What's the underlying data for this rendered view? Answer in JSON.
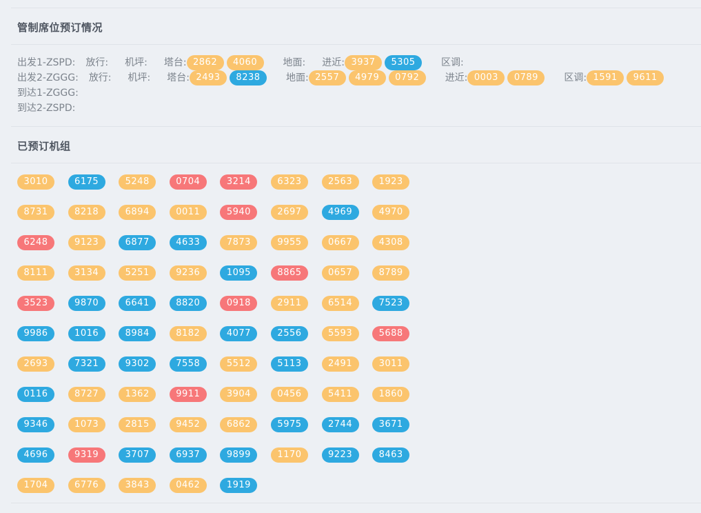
{
  "section1": {
    "title": "管制席位预订情况"
  },
  "section2": {
    "title": "已预订机组"
  },
  "rows": [
    {
      "label": "出发1-ZSPD:",
      "groups": [
        {
          "label": "放行:",
          "chips": []
        },
        {
          "label": "机坪:",
          "chips": []
        },
        {
          "label": "塔台:",
          "chips": [
            {
              "code": "2862",
              "color": "orange"
            },
            {
              "code": "4060",
              "color": "orange"
            }
          ]
        },
        {
          "label": "地面:",
          "chips": []
        },
        {
          "label": "进近:",
          "chips": [
            {
              "code": "3937",
              "color": "orange"
            },
            {
              "code": "5305",
              "color": "blue"
            }
          ]
        },
        {
          "label": "区调:",
          "chips": []
        }
      ]
    },
    {
      "label": "出发2-ZGGG:",
      "groups": [
        {
          "label": "放行:",
          "chips": []
        },
        {
          "label": "机坪:",
          "chips": []
        },
        {
          "label": "塔台:",
          "chips": [
            {
              "code": "2493",
              "color": "orange"
            },
            {
              "code": "8238",
              "color": "blue"
            }
          ]
        },
        {
          "label": "地面:",
          "chips": [
            {
              "code": "2557",
              "color": "orange"
            },
            {
              "code": "4979",
              "color": "orange"
            },
            {
              "code": "0792",
              "color": "orange"
            }
          ]
        },
        {
          "label": "进近:",
          "chips": [
            {
              "code": "0003",
              "color": "orange"
            },
            {
              "code": "0789",
              "color": "orange"
            }
          ]
        },
        {
          "label": "区调:",
          "chips": [
            {
              "code": "1591",
              "color": "orange"
            },
            {
              "code": "9611",
              "color": "orange"
            }
          ]
        }
      ]
    },
    {
      "label": "到达1-ZGGG:",
      "groups": []
    },
    {
      "label": "到达2-ZSPD:",
      "groups": []
    }
  ],
  "booked": [
    {
      "code": "3010",
      "color": "orange"
    },
    {
      "code": "6175",
      "color": "blue"
    },
    {
      "code": "5248",
      "color": "orange"
    },
    {
      "code": "0704",
      "color": "red"
    },
    {
      "code": "3214",
      "color": "red"
    },
    {
      "code": "6323",
      "color": "orange"
    },
    {
      "code": "2563",
      "color": "orange"
    },
    {
      "code": "1923",
      "color": "orange"
    },
    {
      "code": "8731",
      "color": "orange"
    },
    {
      "code": "8218",
      "color": "orange"
    },
    {
      "code": "6894",
      "color": "orange"
    },
    {
      "code": "0011",
      "color": "orange"
    },
    {
      "code": "5940",
      "color": "red"
    },
    {
      "code": "2697",
      "color": "orange"
    },
    {
      "code": "4969",
      "color": "blue"
    },
    {
      "code": "4970",
      "color": "orange"
    },
    {
      "code": "6248",
      "color": "red"
    },
    {
      "code": "9123",
      "color": "orange"
    },
    {
      "code": "6877",
      "color": "blue"
    },
    {
      "code": "4633",
      "color": "blue"
    },
    {
      "code": "7873",
      "color": "orange"
    },
    {
      "code": "9955",
      "color": "orange"
    },
    {
      "code": "0667",
      "color": "orange"
    },
    {
      "code": "4308",
      "color": "orange"
    },
    {
      "code": "8111",
      "color": "orange"
    },
    {
      "code": "3134",
      "color": "orange"
    },
    {
      "code": "5251",
      "color": "orange"
    },
    {
      "code": "9236",
      "color": "orange"
    },
    {
      "code": "1095",
      "color": "blue"
    },
    {
      "code": "8865",
      "color": "red"
    },
    {
      "code": "0657",
      "color": "orange"
    },
    {
      "code": "8789",
      "color": "orange"
    },
    {
      "code": "3523",
      "color": "red"
    },
    {
      "code": "9870",
      "color": "blue"
    },
    {
      "code": "6641",
      "color": "blue"
    },
    {
      "code": "8820",
      "color": "blue"
    },
    {
      "code": "0918",
      "color": "red"
    },
    {
      "code": "2911",
      "color": "orange"
    },
    {
      "code": "6514",
      "color": "orange"
    },
    {
      "code": "7523",
      "color": "blue"
    },
    {
      "code": "9986",
      "color": "blue"
    },
    {
      "code": "1016",
      "color": "blue"
    },
    {
      "code": "8984",
      "color": "blue"
    },
    {
      "code": "8182",
      "color": "orange"
    },
    {
      "code": "4077",
      "color": "blue"
    },
    {
      "code": "2556",
      "color": "blue"
    },
    {
      "code": "5593",
      "color": "orange"
    },
    {
      "code": "5688",
      "color": "red"
    },
    {
      "code": "2693",
      "color": "orange"
    },
    {
      "code": "7321",
      "color": "blue"
    },
    {
      "code": "9302",
      "color": "blue"
    },
    {
      "code": "7558",
      "color": "blue"
    },
    {
      "code": "5512",
      "color": "orange"
    },
    {
      "code": "5113",
      "color": "blue"
    },
    {
      "code": "2491",
      "color": "orange"
    },
    {
      "code": "3011",
      "color": "orange"
    },
    {
      "code": "0116",
      "color": "blue"
    },
    {
      "code": "8727",
      "color": "orange"
    },
    {
      "code": "1362",
      "color": "orange"
    },
    {
      "code": "9911",
      "color": "red"
    },
    {
      "code": "3904",
      "color": "orange"
    },
    {
      "code": "0456",
      "color": "orange"
    },
    {
      "code": "5411",
      "color": "orange"
    },
    {
      "code": "1860",
      "color": "orange"
    },
    {
      "code": "9346",
      "color": "blue"
    },
    {
      "code": "1073",
      "color": "orange"
    },
    {
      "code": "2815",
      "color": "orange"
    },
    {
      "code": "9452",
      "color": "orange"
    },
    {
      "code": "6862",
      "color": "orange"
    },
    {
      "code": "5975",
      "color": "blue"
    },
    {
      "code": "2744",
      "color": "blue"
    },
    {
      "code": "3671",
      "color": "blue"
    },
    {
      "code": "4696",
      "color": "blue"
    },
    {
      "code": "9319",
      "color": "red"
    },
    {
      "code": "3707",
      "color": "blue"
    },
    {
      "code": "6937",
      "color": "blue"
    },
    {
      "code": "9899",
      "color": "blue"
    },
    {
      "code": "1170",
      "color": "orange"
    },
    {
      "code": "9223",
      "color": "blue"
    },
    {
      "code": "8463",
      "color": "blue"
    },
    {
      "code": "1704",
      "color": "orange"
    },
    {
      "code": "6776",
      "color": "orange"
    },
    {
      "code": "3843",
      "color": "orange"
    },
    {
      "code": "0462",
      "color": "orange"
    },
    {
      "code": "1919",
      "color": "blue"
    }
  ],
  "colors": {
    "orange": "#fbc46d",
    "blue": "#2ea9e0",
    "red": "#f77779",
    "background": "#edf0f4"
  }
}
